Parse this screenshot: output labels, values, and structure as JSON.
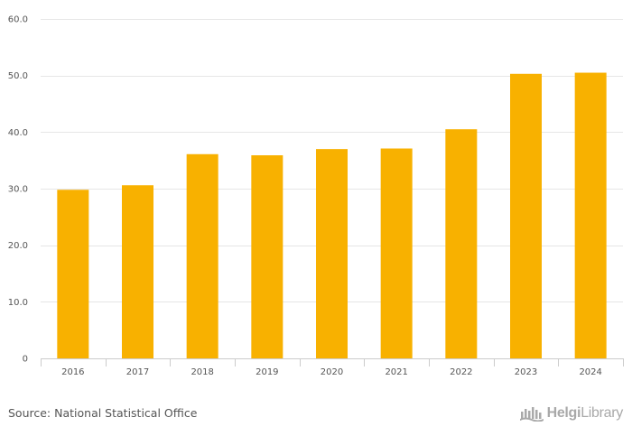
{
  "chart_data": {
    "type": "bar",
    "categories": [
      "2016",
      "2017",
      "2018",
      "2019",
      "2020",
      "2021",
      "2022",
      "2023",
      "2024"
    ],
    "values": [
      29.8,
      30.6,
      36.1,
      35.9,
      37.0,
      37.1,
      40.5,
      50.3,
      50.5
    ],
    "ylim": [
      0,
      60
    ],
    "yticks": [
      0,
      10,
      20,
      30,
      40,
      50,
      60
    ],
    "ytick_labels": [
      "0",
      "10.0",
      "20.0",
      "30.0",
      "40.0",
      "50.0",
      "60.0"
    ],
    "bar_color": "#F8B100",
    "grid": true,
    "title": "",
    "xlabel": "",
    "ylabel": ""
  },
  "footer": {
    "source": "Source: National Statistical Office",
    "brand_bold": "Helgi",
    "brand_rest": "Library"
  },
  "colors": {
    "grid": "#e6e6e6",
    "axis": "#cccccc",
    "text": "#555555",
    "brand": "#a9a9a9"
  },
  "icons": {
    "brand_logo": "helgi-library-logo-icon"
  }
}
